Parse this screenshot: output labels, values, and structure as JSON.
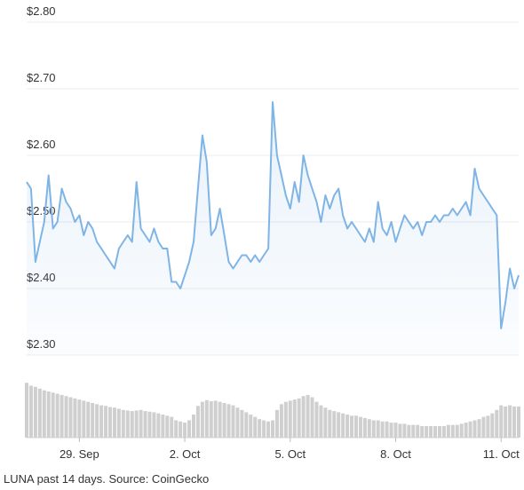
{
  "chart_data": {
    "type": "line",
    "caption": "LUNA past 14 days. Source: CoinGecko",
    "categories": [
      null,
      null,
      null,
      null,
      null,
      null,
      null,
      null,
      null,
      null,
      null,
      null,
      "29. Sep",
      null,
      null,
      null,
      null,
      null,
      null,
      null,
      null,
      null,
      null,
      null,
      null,
      null,
      null,
      null,
      null,
      null,
      null,
      null,
      null,
      null,
      null,
      null,
      "2. Oct",
      null,
      null,
      null,
      null,
      null,
      null,
      null,
      null,
      null,
      null,
      null,
      null,
      null,
      null,
      null,
      null,
      null,
      null,
      null,
      null,
      null,
      null,
      null,
      "5. Oct",
      null,
      null,
      null,
      null,
      null,
      null,
      null,
      null,
      null,
      null,
      null,
      null,
      null,
      null,
      null,
      null,
      null,
      null,
      null,
      null,
      null,
      null,
      null,
      "8. Oct",
      null,
      null,
      null,
      null,
      null,
      null,
      null,
      null,
      null,
      null,
      null,
      null,
      null,
      null,
      null,
      null,
      null,
      null,
      null,
      null,
      null,
      null,
      null,
      "11. Oct",
      null,
      null,
      null,
      null
    ],
    "series": [
      {
        "color": "#7fb4e6",
        "values": [
          2.56,
          2.55,
          2.44,
          2.47,
          2.5,
          2.57,
          2.49,
          2.5,
          2.55,
          2.53,
          2.52,
          2.5,
          2.51,
          2.48,
          2.5,
          2.49,
          2.47,
          2.46,
          2.45,
          2.44,
          2.43,
          2.46,
          2.47,
          2.48,
          2.47,
          2.56,
          2.49,
          2.48,
          2.47,
          2.49,
          2.47,
          2.46,
          2.46,
          2.41,
          2.41,
          2.4,
          2.42,
          2.44,
          2.47,
          2.55,
          2.63,
          2.59,
          2.48,
          2.49,
          2.52,
          2.48,
          2.44,
          2.43,
          2.44,
          2.45,
          2.45,
          2.44,
          2.45,
          2.44,
          2.45,
          2.46,
          2.68,
          2.6,
          2.57,
          2.54,
          2.52,
          2.56,
          2.53,
          2.6,
          2.57,
          2.55,
          2.53,
          2.5,
          2.54,
          2.52,
          2.54,
          2.55,
          2.51,
          2.49,
          2.5,
          2.49,
          2.48,
          2.47,
          2.49,
          2.47,
          2.53,
          2.49,
          2.48,
          2.5,
          2.47,
          2.49,
          2.51,
          2.5,
          2.49,
          2.5,
          2.48,
          2.5,
          2.5,
          2.51,
          2.5,
          2.51,
          2.51,
          2.52,
          2.51,
          2.52,
          2.53,
          2.51,
          2.58,
          2.55,
          2.54,
          2.53,
          2.52,
          2.51,
          2.34,
          2.38,
          2.43,
          2.4,
          2.42
        ]
      },
      {
        "color": "#cfcfcf",
        "axis": "y2",
        "values": [
          95,
          90,
          88,
          85,
          82,
          80,
          78,
          76,
          74,
          72,
          70,
          68,
          66,
          64,
          62,
          60,
          58,
          56,
          55,
          53,
          52,
          50,
          48,
          47,
          46,
          47,
          48,
          46,
          45,
          44,
          42,
          40,
          38,
          36,
          30,
          28,
          26,
          30,
          40,
          55,
          62,
          65,
          63,
          64,
          62,
          60,
          58,
          56,
          52,
          48,
          44,
          40,
          36,
          32,
          30,
          28,
          30,
          48,
          58,
          62,
          64,
          66,
          68,
          72,
          74,
          70,
          62,
          56,
          52,
          48,
          46,
          44,
          42,
          40,
          38,
          38,
          36,
          34,
          32,
          30,
          30,
          28,
          28,
          26,
          26,
          24,
          24,
          22,
          22,
          22,
          20,
          20,
          20,
          20,
          20,
          20,
          22,
          22,
          22,
          24,
          26,
          28,
          30,
          32,
          36,
          38,
          42,
          48,
          56,
          54,
          56,
          54,
          54
        ]
      }
    ],
    "ylim": [
      2.3,
      2.8
    ],
    "yticks": [
      {
        "value": 2.8,
        "label": "$2.80"
      },
      {
        "value": 2.7,
        "label": "$2.70"
      },
      {
        "value": 2.6,
        "label": "$2.60"
      },
      {
        "value": 2.5,
        "label": "$2.50"
      },
      {
        "value": 2.4,
        "label": "$2.40"
      },
      {
        "value": 2.3,
        "label": "$2.30"
      }
    ],
    "y2lim": [
      0,
      100
    ],
    "grid": true
  }
}
